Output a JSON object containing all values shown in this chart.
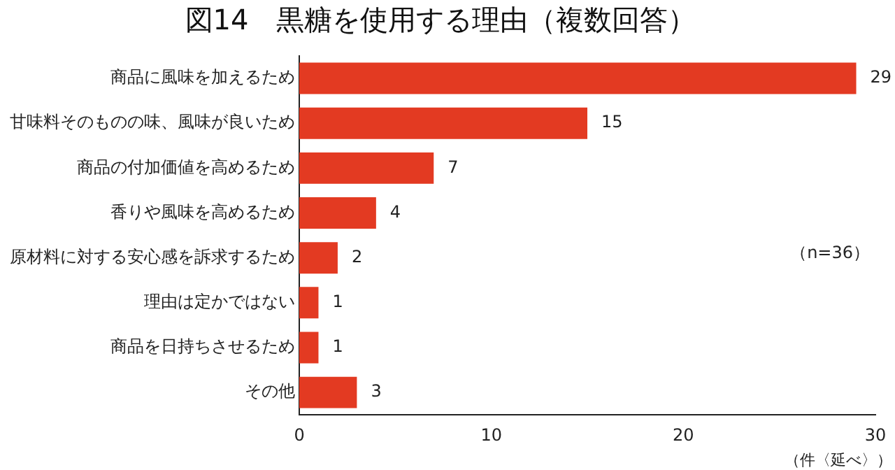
{
  "chart_data": {
    "type": "bar",
    "orientation": "horizontal",
    "title": "図14　黒糖を使用する理由（複数回答）",
    "xlabel": "（件〈延べ〉）",
    "categories": [
      "商品に風味を加えるため",
      "甘味料そのものの味、風味が良いため",
      "商品の付加価値を高めるため",
      "香りや風味を高めるため",
      "原材料に対する安心感を訴求するため",
      "理由は定かではない",
      "商品を日持ちさせるため",
      "その他"
    ],
    "values": [
      29,
      15,
      7,
      4,
      2,
      1,
      1,
      3
    ],
    "color": "#e33a22",
    "xlim": [
      0,
      30
    ],
    "xticks": [
      0,
      10,
      20,
      30
    ],
    "grid": false,
    "legend": false,
    "data_labels": true,
    "annotations": [
      "（n=36）"
    ]
  }
}
